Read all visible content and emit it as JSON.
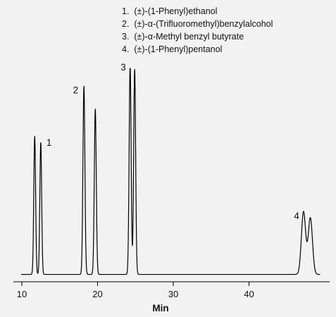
{
  "chart_data": {
    "type": "line",
    "title": "",
    "xlabel": "Min",
    "ylabel": "",
    "xlim": [
      9.5,
      50
    ],
    "ylim": [
      0,
      1
    ],
    "grid": false,
    "legend_position": "top-right",
    "x_ticks": [
      10,
      20,
      30,
      40
    ],
    "legend_items": [
      "1.  (±)-(1-Phenyl)ethanol",
      "2.  (±)-α-(Trifluoromethyl)benzylalcohol",
      "3.  (±)-α-Methyl benzyl butyrate",
      "4.  (±)-(1-Phenyl)pentanol"
    ],
    "baseline": 0.015,
    "peaks": [
      {
        "compound": "1",
        "enantiomers": [
          {
            "x": 11.7,
            "height": 0.66
          },
          {
            "x": 12.5,
            "height": 0.63
          }
        ],
        "label": "1"
      },
      {
        "compound": "2",
        "enantiomers": [
          {
            "x": 18.2,
            "height": 0.9
          },
          {
            "x": 19.7,
            "height": 0.79
          }
        ],
        "label": "2"
      },
      {
        "compound": "3",
        "enantiomers": [
          {
            "x": 24.3,
            "height": 1.0
          },
          {
            "x": 24.9,
            "height": 0.98
          }
        ],
        "label": "3"
      },
      {
        "compound": "4",
        "enantiomers": [
          {
            "x": 47.2,
            "height": 0.3
          },
          {
            "x": 48.1,
            "height": 0.27
          }
        ],
        "label": "4"
      }
    ]
  }
}
